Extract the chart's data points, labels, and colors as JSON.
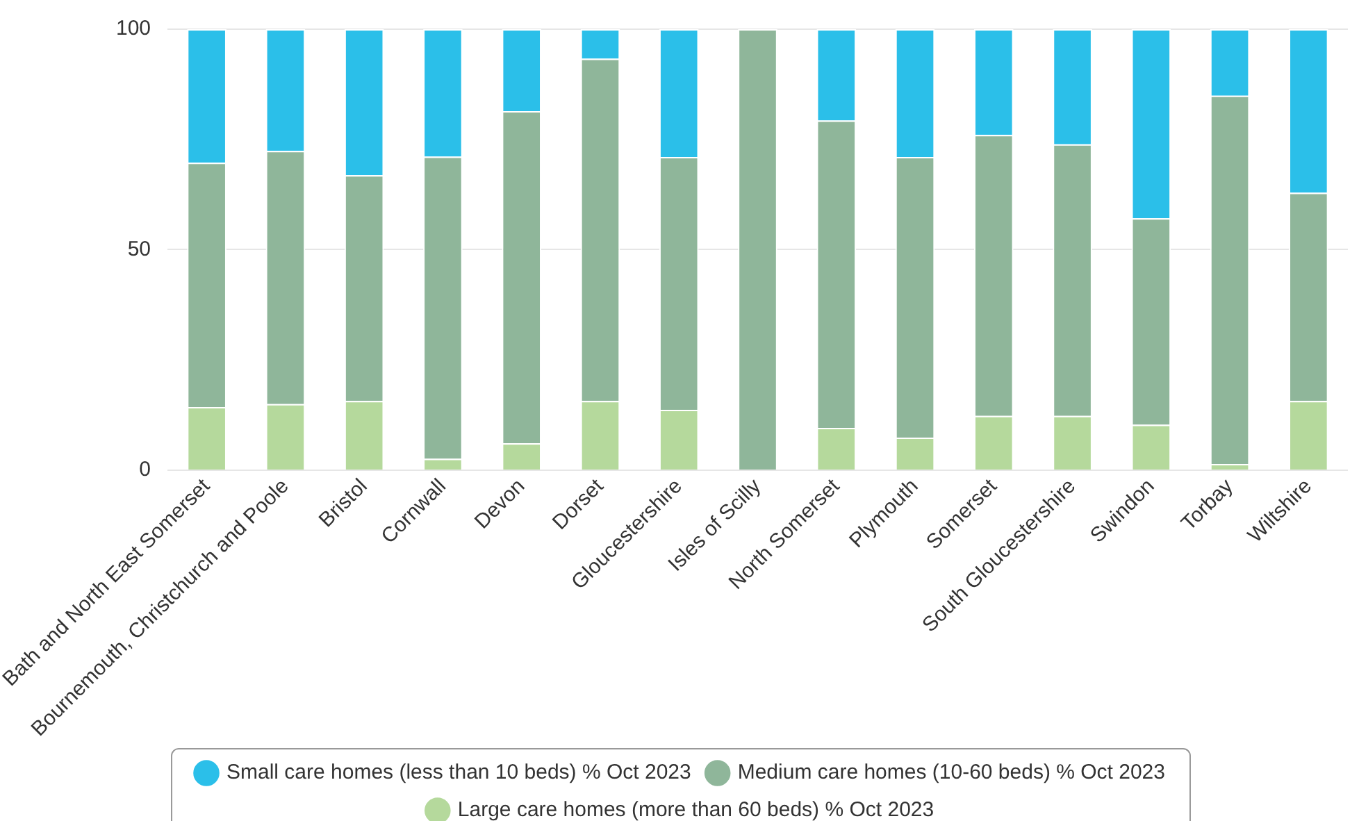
{
  "chart_data": {
    "type": "bar",
    "stacked": true,
    "categories": [
      "Bath and North East Somerset",
      "Bournemouth, Christchurch and Poole",
      "Bristol",
      "Cornwall",
      "Devon",
      "Dorset",
      "Gloucestershire",
      "Isles of Scilly",
      "North Somerset",
      "Plymouth",
      "Somerset",
      "South Gloucestershire",
      "Swindon",
      "Torbay",
      "Wiltshire"
    ],
    "series": [
      {
        "name": "Large care homes (more than 60 beds) % Oct 2023",
        "color": "#b5d99c",
        "values": [
          14.3,
          15,
          15.7,
          2.6,
          6.1,
          15.7,
          13.7,
          0,
          9.6,
          7.4,
          12.3,
          12.3,
          10.3,
          1.4,
          15.7
        ]
      },
      {
        "name": "Medium care homes (10-60 beds) % Oct 2023",
        "color": "#8fb69a",
        "values": [
          55.4,
          57.4,
          51.2,
          68.5,
          75.3,
          77.6,
          57.3,
          100,
          69.7,
          63.6,
          63.7,
          61.6,
          46.8,
          83.5,
          47.2
        ]
      },
      {
        "name": "Small care homes (less than 10 beds) % Oct 2023",
        "color": "#2bbfe9",
        "values": [
          30.3,
          27.6,
          33.1,
          28.9,
          18.6,
          6.7,
          29,
          0,
          20.7,
          29,
          24,
          26.1,
          42.9,
          15.1,
          37.1
        ]
      }
    ],
    "ylim": [
      0,
      100
    ],
    "yticks": [
      0,
      50,
      100
    ],
    "grid": "y",
    "legend": "bottom"
  }
}
